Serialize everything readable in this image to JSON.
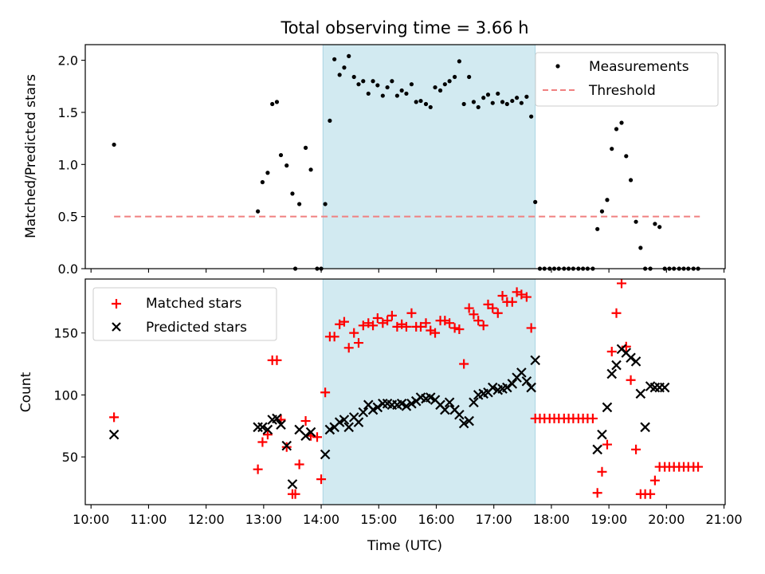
{
  "figure": {
    "title": "Total observing time = 3.66 h",
    "xlabel": "Time (UTC)",
    "xticks": [
      "10:00",
      "11:00",
      "12:00",
      "13:00",
      "14:00",
      "15:00",
      "16:00",
      "17:00",
      "18:00",
      "19:00",
      "20:00",
      "21:00"
    ],
    "xlim_hours": [
      9.9,
      21.02
    ],
    "shaded_span_hours": [
      14.03,
      17.72
    ],
    "colors": {
      "shade": "#add8e6",
      "measurement": "#000000",
      "threshold": "#f08080",
      "matched": "#ff0000",
      "predicted": "#000000"
    }
  },
  "chart_data": [
    {
      "type": "scatter",
      "ylabel": "Matched/Predicted stars",
      "ylim": [
        0,
        2.15
      ],
      "yticks": [
        "0.0",
        "0.5",
        "1.0",
        "1.5",
        "2.0"
      ],
      "ytick_values": [
        0,
        0.5,
        1.0,
        1.5,
        2.0
      ],
      "legend": {
        "placement": "top-right",
        "entries": [
          "Measurements",
          "Threshold"
        ]
      },
      "threshold": {
        "name": "Threshold",
        "y": 0.5,
        "x_range": [
          10.4,
          20.58
        ]
      },
      "series": [
        {
          "name": "Measurements",
          "x": [
            10.4,
            12.9,
            12.98,
            13.07,
            13.15,
            13.23,
            13.3,
            13.4,
            13.5,
            13.55,
            13.62,
            13.73,
            13.82,
            13.93,
            14.0,
            14.07,
            14.15,
            14.23,
            14.32,
            14.4,
            14.48,
            14.57,
            14.65,
            14.73,
            14.82,
            14.9,
            14.98,
            15.07,
            15.15,
            15.23,
            15.32,
            15.4,
            15.48,
            15.57,
            15.65,
            15.73,
            15.82,
            15.9,
            15.98,
            16.07,
            16.15,
            16.23,
            16.32,
            16.4,
            16.48,
            16.57,
            16.65,
            16.73,
            16.82,
            16.9,
            16.98,
            17.07,
            17.15,
            17.23,
            17.32,
            17.4,
            17.48,
            17.57,
            17.65,
            17.72,
            17.8,
            17.88,
            17.97,
            18.05,
            18.13,
            18.22,
            18.3,
            18.38,
            18.47,
            18.55,
            18.63,
            18.72,
            18.8,
            18.88,
            18.97,
            19.05,
            19.13,
            19.22,
            19.3,
            19.38,
            19.47,
            19.55,
            19.63,
            19.72,
            19.8,
            19.88,
            19.97,
            20.05,
            20.13,
            20.22,
            20.3,
            20.38,
            20.47,
            20.55
          ],
          "y": [
            1.19,
            0.55,
            0.83,
            0.92,
            1.58,
            1.6,
            1.09,
            0.99,
            0.72,
            0.0,
            0.62,
            1.16,
            0.95,
            0.0,
            0.0,
            0.62,
            1.42,
            2.01,
            1.86,
            1.93,
            2.04,
            1.84,
            1.77,
            1.8,
            1.68,
            1.8,
            1.76,
            1.66,
            1.74,
            1.8,
            1.66,
            1.71,
            1.68,
            1.77,
            1.6,
            1.61,
            1.58,
            1.55,
            1.74,
            1.71,
            1.77,
            1.8,
            1.84,
            1.99,
            1.58,
            1.84,
            1.6,
            1.55,
            1.64,
            1.67,
            1.59,
            1.68,
            1.6,
            1.58,
            1.61,
            1.64,
            1.59,
            1.65,
            1.46,
            0.64,
            0.0,
            0.0,
            0.0,
            0.0,
            0.0,
            0.0,
            0.0,
            0.0,
            0.0,
            0.0,
            0.0,
            0.0,
            0.38,
            0.55,
            0.66,
            1.15,
            1.34,
            1.4,
            1.08,
            0.85,
            0.45,
            0.2,
            0.0,
            0.0,
            0.43,
            0.4,
            0.0,
            0.0,
            0.0,
            0.0,
            0.0,
            0.0,
            0.0,
            0.0
          ]
        }
      ]
    },
    {
      "type": "scatter",
      "ylabel": "Count",
      "ylim": [
        11.5,
        193.5
      ],
      "yticks": [
        "50",
        "100",
        "150"
      ],
      "ytick_values": [
        50,
        100,
        150
      ],
      "legend": {
        "placement": "top-left",
        "entries": [
          "Matched stars",
          "Predicted stars"
        ]
      },
      "series": [
        {
          "name": "Matched stars",
          "marker": "plus",
          "x": [
            10.4,
            12.9,
            12.98,
            13.07,
            13.15,
            13.23,
            13.3,
            13.4,
            13.5,
            13.55,
            13.62,
            13.73,
            13.82,
            13.93,
            14.0,
            14.07,
            14.15,
            14.23,
            14.32,
            14.4,
            14.48,
            14.57,
            14.65,
            14.73,
            14.82,
            14.9,
            14.98,
            15.07,
            15.15,
            15.23,
            15.32,
            15.4,
            15.48,
            15.57,
            15.65,
            15.73,
            15.82,
            15.9,
            15.98,
            16.07,
            16.15,
            16.23,
            16.32,
            16.4,
            16.48,
            16.57,
            16.65,
            16.73,
            16.82,
            16.9,
            16.98,
            17.07,
            17.15,
            17.23,
            17.32,
            17.4,
            17.48,
            17.57,
            17.65,
            17.72,
            17.8,
            17.88,
            17.97,
            18.05,
            18.13,
            18.22,
            18.3,
            18.38,
            18.47,
            18.55,
            18.63,
            18.72,
            18.8,
            18.88,
            18.97,
            19.05,
            19.13,
            19.22,
            19.3,
            19.38,
            19.47,
            19.55,
            19.63,
            19.72,
            19.8,
            19.88,
            19.97,
            20.05,
            20.13,
            20.22,
            20.3,
            20.38,
            20.47,
            20.55
          ],
          "y": [
            82,
            40,
            62,
            68,
            128,
            128,
            80,
            58,
            20,
            20,
            44,
            79,
            67,
            66,
            32,
            102,
            147,
            147,
            157,
            159,
            138,
            150,
            142,
            156,
            158,
            156,
            162,
            158,
            160,
            164,
            155,
            157,
            155,
            166,
            155,
            155,
            158,
            152,
            150,
            160,
            160,
            158,
            154,
            153,
            125,
            170,
            165,
            160,
            156,
            173,
            170,
            166,
            180,
            175,
            175,
            183,
            181,
            179,
            154,
            81,
            81,
            81,
            81,
            81,
            81,
            81,
            81,
            81,
            81,
            81,
            81,
            81,
            21,
            38,
            60,
            135,
            166,
            190,
            139,
            112,
            56,
            20,
            20,
            20,
            31,
            42,
            42,
            42,
            42,
            42,
            42,
            42,
            42,
            42
          ]
        },
        {
          "name": "Predicted stars",
          "marker": "x",
          "x": [
            10.4,
            12.9,
            12.98,
            13.07,
            13.15,
            13.23,
            13.3,
            13.4,
            13.5,
            13.62,
            13.73,
            13.82,
            14.07,
            14.15,
            14.23,
            14.32,
            14.4,
            14.48,
            14.57,
            14.65,
            14.73,
            14.82,
            14.9,
            14.98,
            15.07,
            15.15,
            15.23,
            15.32,
            15.4,
            15.48,
            15.57,
            15.65,
            15.73,
            15.82,
            15.9,
            15.98,
            16.07,
            16.15,
            16.23,
            16.32,
            16.4,
            16.48,
            16.57,
            16.65,
            16.73,
            16.82,
            16.9,
            16.98,
            17.07,
            17.15,
            17.23,
            17.32,
            17.4,
            17.48,
            17.57,
            17.65,
            17.72,
            18.8,
            18.88,
            18.97,
            19.05,
            19.13,
            19.22,
            19.3,
            19.38,
            19.47,
            19.55,
            19.63,
            19.72,
            19.8,
            19.88,
            19.97
          ],
          "y": [
            68,
            74,
            74,
            72,
            80,
            81,
            76,
            59,
            28,
            72,
            67,
            70,
            52,
            72,
            74,
            78,
            80,
            74,
            82,
            78,
            86,
            92,
            88,
            90,
            93,
            93,
            92,
            92,
            93,
            91,
            93,
            95,
            98,
            97,
            98,
            96,
            92,
            88,
            94,
            88,
            84,
            77,
            79,
            94,
            100,
            101,
            102,
            106,
            104,
            105,
            106,
            109,
            114,
            118,
            111,
            106,
            128,
            56,
            68,
            90,
            117,
            124,
            137,
            134,
            130,
            127,
            101,
            74,
            107,
            106,
            106,
            106
          ]
        }
      ]
    }
  ]
}
